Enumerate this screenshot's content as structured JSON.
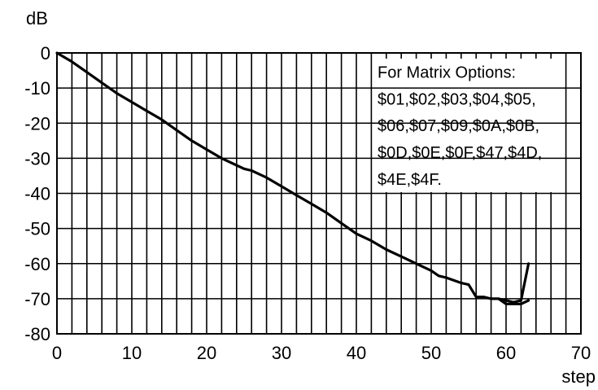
{
  "chart_data": {
    "type": "line",
    "title": "",
    "xlabel": "step",
    "ylabel": "dB",
    "xlim": [
      0,
      70
    ],
    "ylim": [
      -80,
      0
    ],
    "grid": true,
    "x_ticks": [
      "0",
      "10",
      "20",
      "30",
      "40",
      "50",
      "60",
      "70"
    ],
    "y_ticks": [
      "0",
      "-10",
      "-20",
      "-30",
      "-40",
      "-50",
      "-60",
      "-70",
      "-80"
    ],
    "annotation_lines": [
      "For Matrix Options:",
      "$01,$02,$03,$04,$05,",
      "$06,$07,$09,$0A,$0B,",
      "$0D,$0E,$0F,$47,$4D,",
      "$4E,$4F."
    ],
    "series": [
      {
        "x": [
          0,
          2,
          4,
          6,
          8,
          10,
          12,
          14,
          16,
          18,
          20,
          22,
          24,
          25,
          26,
          27,
          28,
          30,
          32,
          34,
          36,
          38,
          40,
          42,
          44,
          46,
          48,
          50,
          51,
          52,
          54,
          55,
          56,
          57,
          58,
          59,
          60,
          61,
          62,
          63
        ],
        "y": [
          0,
          -2.5,
          -5.5,
          -8.5,
          -11.5,
          -14,
          -16.5,
          -19,
          -22,
          -25,
          -27.5,
          -30,
          -32,
          -33,
          -33.5,
          -34.5,
          -35.5,
          -38,
          -40.5,
          -43,
          -45.5,
          -48.5,
          -51.5,
          -53.5,
          -56,
          -58,
          -60,
          -62,
          -63.5,
          -64,
          -65.5,
          -66,
          -69.5,
          -69.5,
          -70,
          -70,
          -71.5,
          -71.5,
          -71.5,
          -70.5
        ]
      },
      {
        "x": [
          59,
          60,
          61,
          62,
          63
        ],
        "y": [
          -70,
          -70.5,
          -71,
          -70.5,
          -60
        ]
      }
    ]
  }
}
